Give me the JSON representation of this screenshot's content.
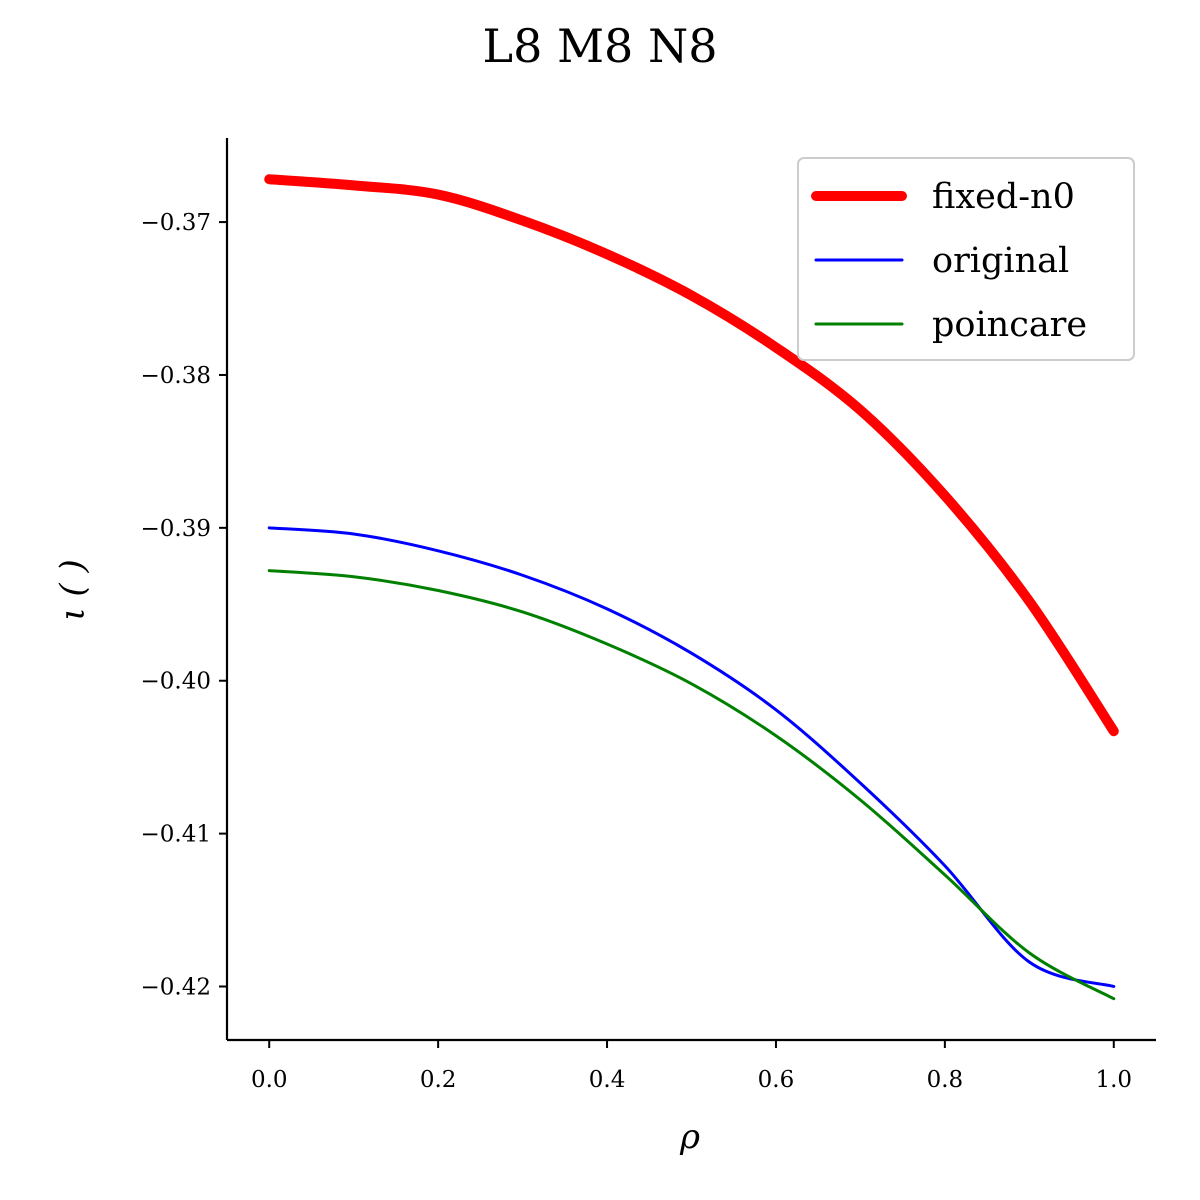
{
  "chart_data": {
    "type": "line",
    "title": "L8 M8 N8",
    "xlabel": "ρ",
    "ylabel": "ι ( )",
    "xlim": [
      -0.05,
      1.05
    ],
    "ylim": [
      -0.4235,
      -0.3645
    ],
    "xticks": [
      0.0,
      0.2,
      0.4,
      0.6,
      0.8,
      1.0
    ],
    "xtick_labels": [
      "0.0",
      "0.2",
      "0.4",
      "0.6",
      "0.8",
      "1.0"
    ],
    "yticks": [
      -0.37,
      -0.38,
      -0.39,
      -0.4,
      -0.41,
      -0.42
    ],
    "ytick_labels": [
      "−0.37",
      "−0.38",
      "−0.39",
      "−0.40",
      "−0.41",
      "−0.42"
    ],
    "grid": false,
    "legend_position": "top-right",
    "x": [
      0.0,
      0.1,
      0.2,
      0.3,
      0.4,
      0.5,
      0.6,
      0.7,
      0.8,
      0.9,
      1.0
    ],
    "series": [
      {
        "name": "fixed-n0",
        "color": "#ff0000",
        "values": [
          -0.3672,
          -0.3676,
          -0.3682,
          -0.3699,
          -0.3721,
          -0.3748,
          -0.3782,
          -0.3823,
          -0.3879,
          -0.3948,
          -0.4033
        ]
      },
      {
        "name": "original",
        "color": "#0000ff",
        "values": [
          -0.39,
          -0.3904,
          -0.3915,
          -0.3931,
          -0.3953,
          -0.3982,
          -0.4019,
          -0.4067,
          -0.4121,
          -0.4184,
          -0.42
        ]
      },
      {
        "name": "poincare",
        "color": "#008000",
        "values": [
          -0.3928,
          -0.3932,
          -0.3941,
          -0.3955,
          -0.3976,
          -0.4002,
          -0.4036,
          -0.4078,
          -0.4127,
          -0.4178,
          -0.4208
        ]
      }
    ]
  }
}
